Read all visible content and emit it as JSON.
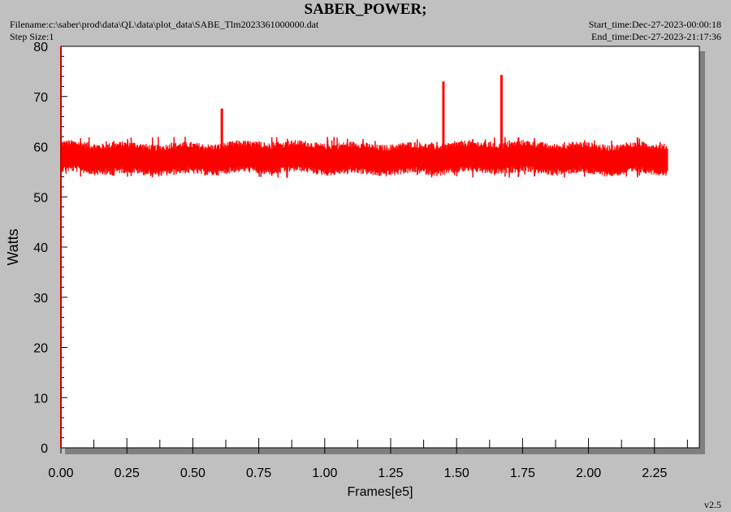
{
  "header": {
    "filename": "Filename:c:\\saber\\prod\\data\\QL\\data\\plot_data\\SABE_Tlm2023361000000.dat",
    "step_size": "Step Size:1",
    "start_time": "Start_time:Dec-27-2023-00:00:18",
    "end_time": "End_time:Dec-27-2023-21:17:36"
  },
  "footer": {
    "version": "v2.5"
  },
  "colors": {
    "series": "#ff0000",
    "axis": "#cc0000",
    "plot_bg": "#ffffff",
    "page_bg": "#c0c0c0"
  },
  "chart_data": {
    "type": "line",
    "title": "SABER_POWER;",
    "xlabel": "Frames[e5]",
    "ylabel": "Watts",
    "xlim": [
      0.0,
      2.42
    ],
    "ylim": [
      0,
      80
    ],
    "x_ticks": [
      "0.00",
      "0.25",
      "0.50",
      "0.75",
      "1.00",
      "1.25",
      "1.50",
      "1.75",
      "2.00",
      "2.25"
    ],
    "y_ticks": [
      "0",
      "10",
      "20",
      "30",
      "40",
      "50",
      "60",
      "70",
      "80"
    ],
    "grid": false,
    "legend": "none",
    "series": [
      {
        "x_range": [
          0.0,
          2.3
        ],
        "mean": 57.9,
        "band_low": 55.0,
        "band_high": 60.8,
        "spikes": [
          {
            "x": 0.61,
            "y": 67.6
          },
          {
            "x": 1.45,
            "y": 73.0
          },
          {
            "x": 1.67,
            "y": 74.3
          }
        ]
      }
    ]
  }
}
